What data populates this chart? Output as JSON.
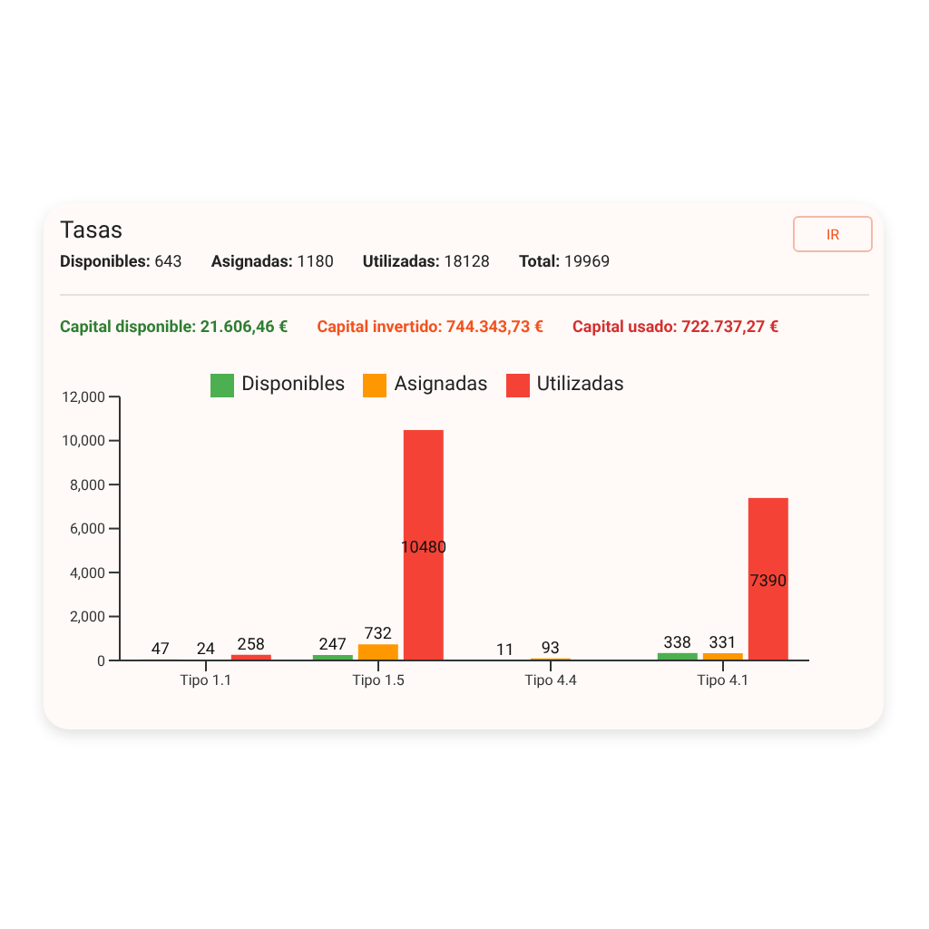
{
  "chart_data": {
    "type": "bar",
    "title": "Tasas",
    "annotations": [
      "Disponibles: 643",
      "Asignadas: 1180",
      "Utilizadas: 18128",
      "Total: 19969",
      "Capital disponible: 21.606,46 €",
      "Capital invertido: 744.343,73 €",
      "Capital usado: 722.737,27 €",
      "IR"
    ],
    "categories": [
      "Tipo 1.1",
      "Tipo 1.5",
      "Tipo 4.4",
      "Tipo 4.1"
    ],
    "series": [
      {
        "name": "Disponibles",
        "color": "#4caf50",
        "values": [
          47,
          247,
          11,
          338
        ],
        "value_labels": [
          "47",
          "247",
          "11",
          "338"
        ]
      },
      {
        "name": "Asignadas",
        "color": "#ff9800",
        "values": [
          24,
          732,
          93,
          331
        ],
        "value_labels": [
          "24",
          "732",
          "93",
          "331"
        ]
      },
      {
        "name": "Utilizadas",
        "color": "#f44336",
        "values": [
          258,
          10480,
          0,
          7390
        ],
        "value_labels": [
          "258",
          "10480",
          null,
          "7390"
        ]
      }
    ],
    "ylim": [
      0,
      12000
    ],
    "yticks": [
      0,
      {
        "value": 2000,
        "label": "2,000"
      },
      {
        "value": 4000,
        "label": "4,000"
      },
      {
        "value": 6000,
        "label": "6,000"
      },
      {
        "value": 8000,
        "label": "8,000"
      },
      {
        "value": 10000,
        "label": "10,000"
      },
      {
        "value": 12000,
        "label": "12,000"
      }
    ],
    "grid": false,
    "legend": "top"
  }
}
